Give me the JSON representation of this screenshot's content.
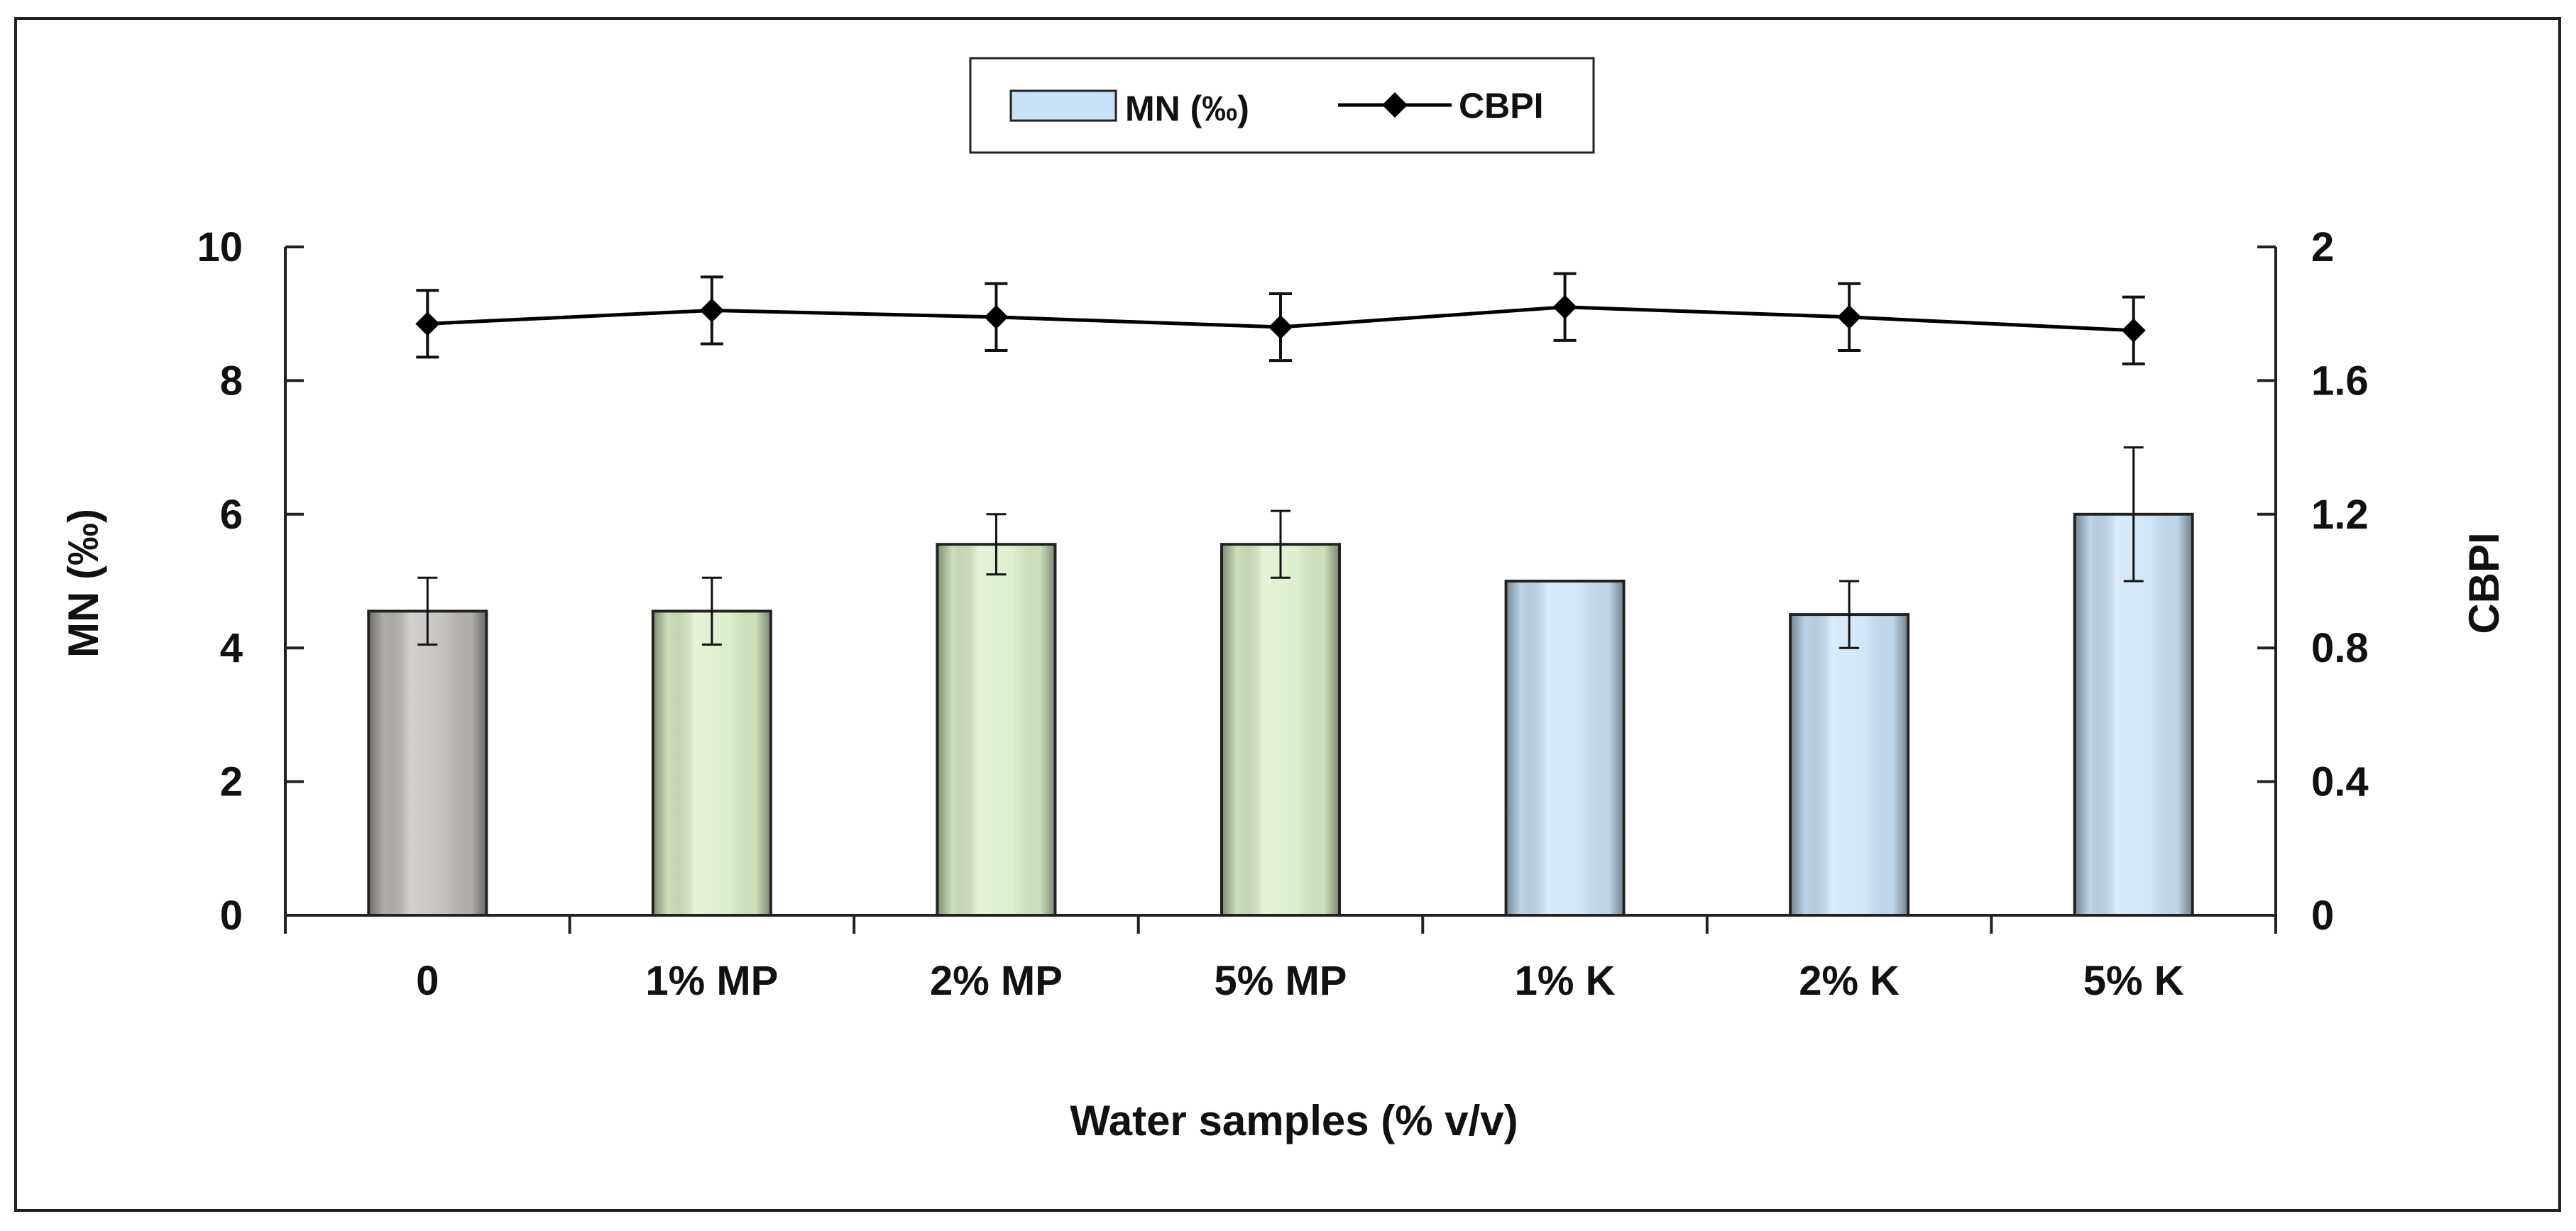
{
  "chart_data": {
    "type": "bar+line",
    "title": "",
    "xlabel": "Water samples (% v/v)",
    "ylabel": "MN (‰)",
    "y2label": "CBPI",
    "categories": [
      "0",
      "1% MP",
      "2% MP",
      "5% MP",
      "1% K",
      "2% K",
      "5% K"
    ],
    "ylim": [
      0,
      10
    ],
    "y_ticks": [
      "0",
      "2",
      "4",
      "6",
      "8",
      "10"
    ],
    "y_tick_values": [
      0,
      2,
      4,
      6,
      8,
      10
    ],
    "y2lim": [
      0,
      2
    ],
    "y2_ticks": [
      "0",
      "0.4",
      "0.8",
      "1.2",
      "1.6",
      "2"
    ],
    "y2_tick_values": [
      0,
      0.4,
      0.8,
      1.2,
      1.6,
      2
    ],
    "series": [
      {
        "name": "MN (‰)",
        "kind": "bar",
        "axis": "left",
        "values": [
          4.55,
          4.55,
          5.55,
          5.55,
          5.0,
          4.5,
          6.0
        ],
        "errors": [
          0.5,
          0.5,
          0.45,
          0.5,
          0,
          0.5,
          1.0
        ],
        "colors": [
          "#bcb7b2",
          "#d7ecc3",
          "#d7ecc3",
          "#d7ecc3",
          "#c7e1f6",
          "#c7e1f6",
          "#c7e1f6"
        ]
      },
      {
        "name": "CBPI",
        "kind": "line",
        "axis": "right",
        "values": [
          1.77,
          1.81,
          1.79,
          1.76,
          1.82,
          1.79,
          1.75
        ],
        "errors": [
          0.1,
          0.1,
          0.1,
          0.1,
          0.1,
          0.1,
          0.1
        ],
        "color": "#000000"
      }
    ],
    "legend": {
      "position": "top-center",
      "items": [
        {
          "label": "MN (‰)",
          "kind": "bar",
          "color": "#c7e1f6"
        },
        {
          "label": "CBPI",
          "kind": "line",
          "color": "#000000"
        }
      ]
    }
  }
}
